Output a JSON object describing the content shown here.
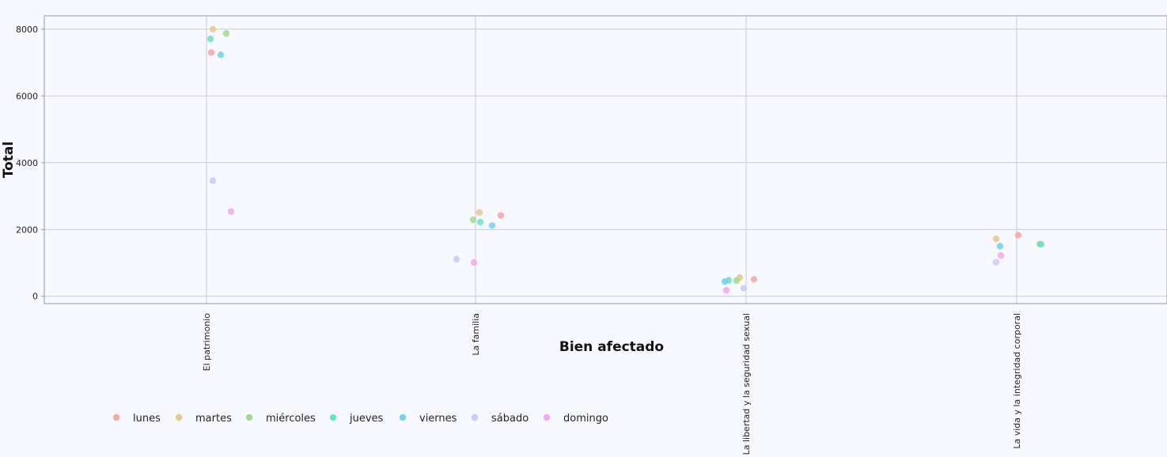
{
  "chart_data": {
    "type": "scatter",
    "xlabel": "Bien afectado",
    "ylabel": "Total",
    "categories": [
      "El patrimonio",
      "La familia",
      "La libertad y la seguridad sexual",
      "La vida y la integridad corporal"
    ],
    "ylim": [
      -220,
      8400
    ],
    "yticks": [
      0,
      2000,
      4000,
      6000,
      8000
    ],
    "grid": true,
    "legend_position": "bottom-left",
    "series": [
      {
        "name": "lunes",
        "color": "#f4a6a6",
        "values": [
          7300,
          2420,
          510,
          1830
        ]
      },
      {
        "name": "martes",
        "color": "#e3c98c",
        "values": [
          8000,
          2510,
          560,
          1720
        ]
      },
      {
        "name": "miércoles",
        "color": "#a3d98a",
        "values": [
          7870,
          2290,
          470,
          1560
        ]
      },
      {
        "name": "jueves",
        "color": "#6fdfc0",
        "values": [
          7710,
          2220,
          480,
          1560
        ]
      },
      {
        "name": "viernes",
        "color": "#72d2ec",
        "values": [
          7230,
          2120,
          440,
          1500
        ]
      },
      {
        "name": "sábado",
        "color": "#cdc8f6",
        "values": [
          3460,
          1110,
          240,
          1020
        ]
      },
      {
        "name": "domingo",
        "color": "#f2a8ea",
        "values": [
          2540,
          1010,
          180,
          1220
        ]
      }
    ]
  }
}
